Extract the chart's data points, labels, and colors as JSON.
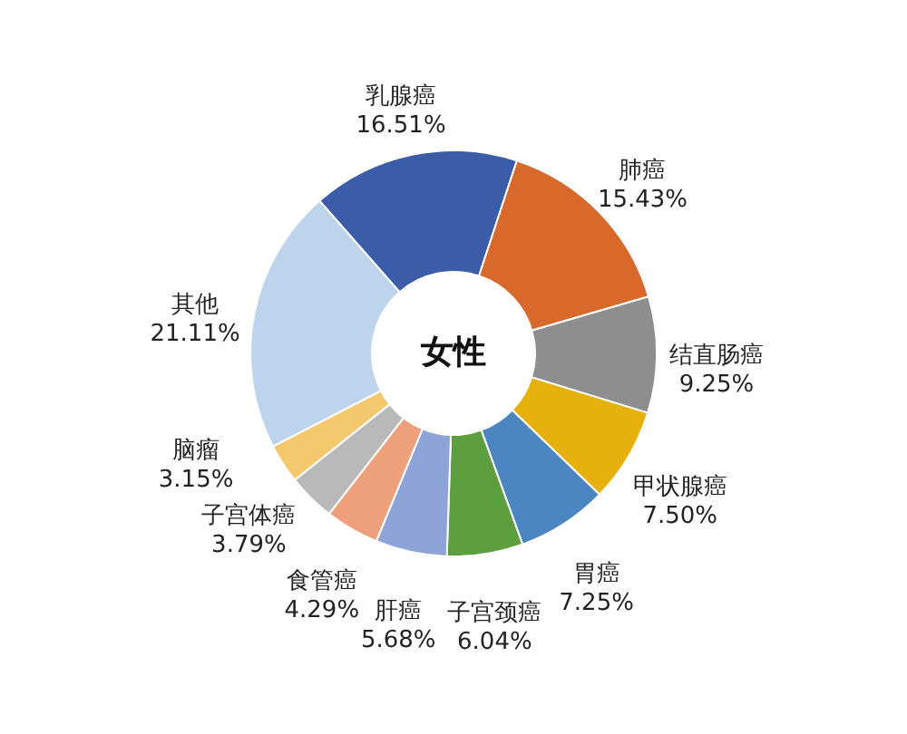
{
  "chart_data": {
    "type": "donut",
    "title": "女性",
    "categories": [
      "乳腺癌",
      "肺癌",
      "结直肠癌",
      "甲状腺癌",
      "胃癌",
      "子宫颈癌",
      "肝癌",
      "食管癌",
      "子宫体癌",
      "脑瘤",
      "其他"
    ],
    "values": [
      16.51,
      15.43,
      9.25,
      7.5,
      7.25,
      6.04,
      5.68,
      4.29,
      3.79,
      3.15,
      21.11
    ],
    "value_labels": [
      "16.51%",
      "15.43%",
      "9.25%",
      "7.50%",
      "7.25%",
      "6.04%",
      "5.68%",
      "4.29%",
      "3.79%",
      "3.15%",
      "21.11%"
    ],
    "colors": [
      "#3b5ca8",
      "#d8692b",
      "#8e8e8e",
      "#e6b10c",
      "#4b86c2",
      "#5d9f3f",
      "#8ea4d8",
      "#eea07c",
      "#b9b9b9",
      "#f4c86c",
      "#bdd4ec"
    ]
  }
}
